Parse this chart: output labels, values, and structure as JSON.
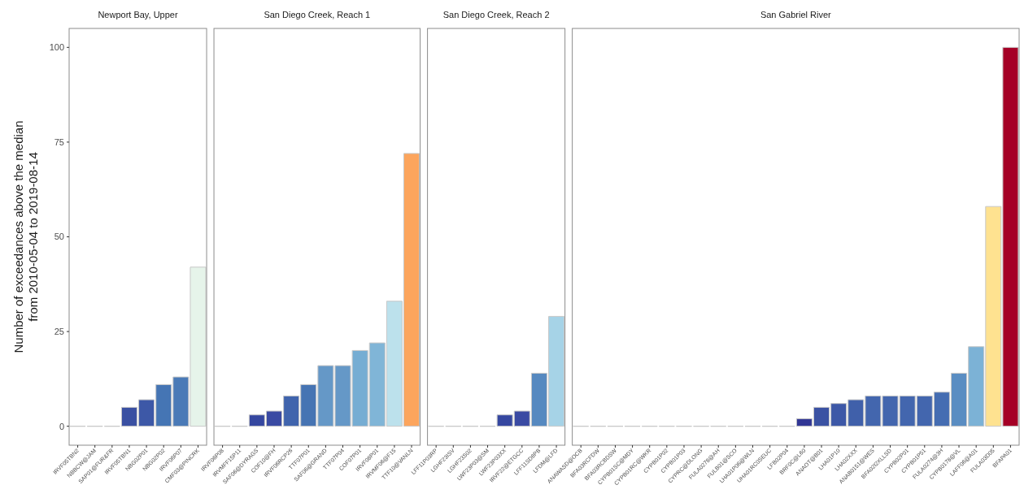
{
  "chart_data": [
    {
      "type": "bar",
      "title": "Newport Bay, Upper",
      "ylabel": "Number of exceedances above the median\nfrom 2010-05-04 to 2019-08-14",
      "categories": [
        "IRVF05TBN2",
        "NBBCW@JAM",
        "SAP01@FUR&FR",
        "IRVF05TBN1",
        "NBG02P01",
        "NBG02P02",
        "IRVF06P07",
        "CMF03@PINCRK"
      ],
      "values": [
        0,
        0,
        0,
        5,
        7,
        11,
        13,
        42
      ],
      "colors": [
        "#c8c8c8",
        "#c8c8c8",
        "#c8c8c8",
        "#3a50a2",
        "#3d58a7",
        "#4575b4",
        "#4a7ab7",
        "#e6f4ea"
      ],
      "ylim": [
        -5,
        105
      ],
      "yticks": [
        0,
        25,
        50,
        75,
        100
      ]
    },
    {
      "type": "bar",
      "title": "San Diego Creek, Reach 1",
      "categories": [
        "IRVF06P08",
        "IRVMFF15P11",
        "SAF06@DYRAGS",
        "COF10@FH",
        "IRVF06RCP26",
        "TTF07P01",
        "SAF06@GRAND",
        "TTF07P04",
        "COF07P01",
        "IRVF08P01",
        "IRVMF06@F15",
        "TTF10@VANLN"
      ],
      "values": [
        0,
        0,
        3,
        4,
        8,
        11,
        16,
        16,
        20,
        22,
        33,
        72
      ],
      "colors": [
        "#c8c8c8",
        "#c8c8c8",
        "#3547a0",
        "#3a4aa3",
        "#4064ad",
        "#4674b3",
        "#6598c7",
        "#6598c7",
        "#76add3",
        "#80b5d7",
        "#bce1ec",
        "#fca55d"
      ],
      "ylim": [
        -5,
        105
      ],
      "tick_labels": "x"
    },
    {
      "type": "bar",
      "title": "San Diego Creek, Reach 2",
      "categories": [
        "LFF11P03RP",
        "LGHF23ISV",
        "LGHF23S02",
        "LWF23P03@SM",
        "LWF23P03XX",
        "IRVF22@ETGCC",
        "LFF11SD8PB",
        "LFDM@LFD"
      ],
      "values": [
        0,
        0,
        0,
        0,
        3,
        4,
        14,
        29
      ],
      "colors": [
        "#c8c8c8",
        "#c8c8c8",
        "#c8c8c8",
        "#c8c8c8",
        "#3547a0",
        "#3a4aa3",
        "#5689c0",
        "#a6d3e7"
      ],
      "ylim": [
        -5,
        105
      ],
      "tick_labels": "x"
    },
    {
      "type": "bar",
      "title": "San Gabriel River",
      "categories": [
        "ANAWASD@OCB",
        "BFA03RCFDW",
        "BFA03RCBDSW",
        "CYPB01SC@MDY",
        "CYPB01RC@WKR",
        "CYPB01P02",
        "CYPB01P03",
        "CYPRC@DLONG",
        "FULA0278@AH",
        "FULB01@SCO",
        "LHA01P06@WLN",
        "UHA01RC0SEUC",
        "LFB02P04",
        "BRF0C@L60",
        "ANAOT@B01",
        "LHA01P10",
        "LHA02XXX",
        "ANAB0151@WES",
        "BFA02I2XLLSD",
        "CYPB02P01",
        "CYPB01P51",
        "FULA0274@3H",
        "CYPB0178@VL",
        "LAFF06@A01",
        "FULA03D05",
        "BFAPA01"
      ],
      "values": [
        0,
        0,
        0,
        0,
        0,
        0,
        0,
        0,
        0,
        0,
        0,
        0,
        0,
        2,
        5,
        6,
        7,
        8,
        8,
        8,
        8,
        9,
        14,
        21,
        58,
        100
      ],
      "colors": [
        "#c8c8c8",
        "#c8c8c8",
        "#c8c8c8",
        "#c8c8c8",
        "#c8c8c8",
        "#c8c8c8",
        "#c8c8c8",
        "#c8c8c8",
        "#c8c8c8",
        "#c8c8c8",
        "#c8c8c8",
        "#c8c8c8",
        "#c8c8c8",
        "#313695",
        "#3b52a3",
        "#3d58a7",
        "#4060aa",
        "#4366ae",
        "#4366ae",
        "#4366ae",
        "#4366ae",
        "#456db2",
        "#5a8dc2",
        "#7cb2d6",
        "#fee290",
        "#a50026"
      ],
      "ylim": [
        -5,
        105
      ],
      "tick_labels": "x"
    }
  ]
}
